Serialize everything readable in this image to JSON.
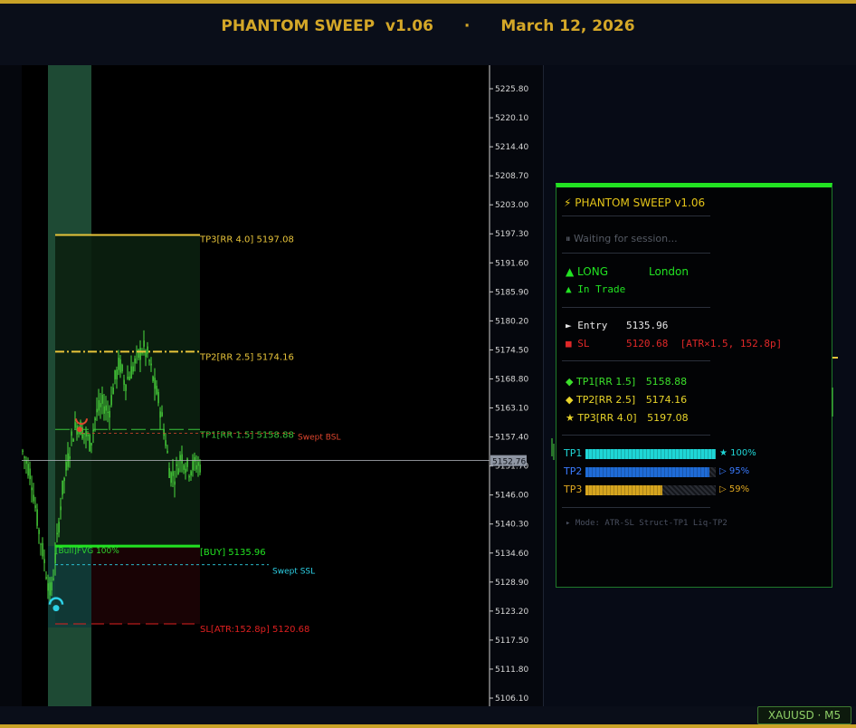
{
  "header": {
    "title": "PHANTOM SWEEP  v1.06",
    "separator": "·",
    "date": "March 12, 2026"
  },
  "chart": {
    "y_axis_ticks": [
      "5225.80",
      "5220.10",
      "5214.40",
      "5208.70",
      "5203.00",
      "5197.30",
      "5191.60",
      "5185.90",
      "5180.20",
      "5174.50",
      "5168.80",
      "5163.10",
      "5157.40",
      "5151.70",
      "5146.00",
      "5140.30",
      "5134.60",
      "5128.90",
      "5123.20",
      "5117.50",
      "5111.80",
      "5106.10"
    ],
    "y_axis_range": [
      5106.1,
      5225.8
    ],
    "current_price": "5152.76",
    "levels": {
      "tp3": {
        "label": "TP3[RR 4.0] 5197.08",
        "price": 5197.08,
        "color": "#e8c43a"
      },
      "tp2": {
        "label": "TP2[RR 2.5] 5174.16",
        "price": 5174.16,
        "color": "#e8c43a"
      },
      "tp1": {
        "label": "TP1[RR 1.5] 5158.88",
        "price": 5158.88,
        "color": "#3bc43b"
      },
      "entry": {
        "label": "[BUY] 5135.96",
        "price": 5135.96,
        "color": "#22e322"
      },
      "sl": {
        "label": "SL[ATR:152.8p] 5120.68",
        "price": 5120.68,
        "color": "#e02020"
      }
    },
    "annotations": {
      "swept_bsl": "Swept BSL",
      "swept_ssl": "Swept SSL",
      "fvg": "[Bull]FVG 100%"
    },
    "colors": {
      "candle": "#4bdc3d",
      "session": "#1e4a34",
      "tp_zone": "#0b2010",
      "sl_zone": "#1c0306"
    }
  },
  "panel": {
    "title": "⚡ PHANTOM SWEEP  v1.06",
    "status_icon": "pause-icon",
    "status": "⏸ Waiting for session...",
    "direction": "▲ LONG",
    "session": "London",
    "trade_state": "▲  In Trade",
    "entry_label": "► Entry",
    "entry_value": "5135.96",
    "sl_label": "■ SL",
    "sl_value": "5120.68  [ATR×1.5, 152.8p]",
    "tp1": {
      "icon": "◆",
      "label": "TP1[RR 1.5]",
      "value": "5158.88",
      "color": "#3ce02b"
    },
    "tp2": {
      "icon": "◆",
      "label": "TP2[RR 2.5]",
      "value": "5174.16",
      "color": "#e8d42a"
    },
    "tp3": {
      "icon": "★",
      "label": "TP3[RR 4.0]",
      "value": "5197.08",
      "color": "#e8d42a"
    },
    "progress": [
      {
        "label": "TP1",
        "pct": "★ 100%",
        "value": 1.0,
        "color": "#1fd6d6",
        "text_color": "#1fd6d6"
      },
      {
        "label": "TP2",
        "pct": "▷ 95%",
        "value": 0.95,
        "color": "#1f6bd6",
        "text_color": "#3a7bff"
      },
      {
        "label": "TP3",
        "pct": "▷ 59%",
        "value": 0.59,
        "color": "#d6a51f",
        "text_color": "#e0a820"
      }
    ],
    "mode": "▸ Mode: ATR-SL Struct-TP1 Liq-TP2"
  },
  "symbol_badge": "XAUUSD · M5"
}
